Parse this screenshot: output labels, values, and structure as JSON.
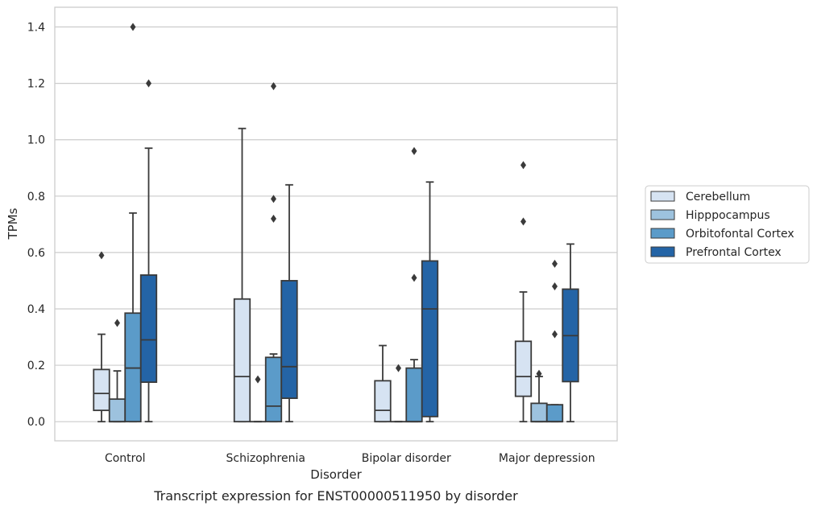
{
  "caption": "Transcript expression for ENST00000511950 by disorder",
  "chart_data": {
    "type": "box",
    "title": "",
    "xlabel": "Disorder",
    "ylabel": "TPMs",
    "ylim": [
      -0.068,
      1.47
    ],
    "yticks": [
      "0.0",
      "0.2",
      "0.4",
      "0.6",
      "0.8",
      "1.0",
      "1.2",
      "1.4"
    ],
    "grid": "horizontal",
    "legend_position": "right",
    "categories": [
      "Control",
      "Schizophrenia",
      "Bipolar disorder",
      "Major depression"
    ],
    "series": [
      {
        "name": "Cerebellum",
        "color": "#d6e3f2",
        "boxes": [
          {
            "whisker_low": 0.0,
            "q1": 0.04,
            "median": 0.1,
            "q3": 0.185,
            "whisker_high": 0.31,
            "outliers": [
              0.59
            ]
          },
          {
            "whisker_low": 0.0,
            "q1": 0.0,
            "median": 0.16,
            "q3": 0.435,
            "whisker_high": 1.04,
            "outliers": []
          },
          {
            "whisker_low": 0.0,
            "q1": 0.0,
            "median": 0.04,
            "q3": 0.145,
            "whisker_high": 0.27,
            "outliers": []
          },
          {
            "whisker_low": 0.0,
            "q1": 0.09,
            "median": 0.16,
            "q3": 0.285,
            "whisker_high": 0.46,
            "outliers": [
              0.71,
              0.91
            ]
          }
        ]
      },
      {
        "name": "Hipppocampus",
        "color": "#9dc2de",
        "boxes": [
          {
            "whisker_low": 0.0,
            "q1": 0.0,
            "median": 0.0,
            "q3": 0.08,
            "whisker_high": 0.18,
            "outliers": [
              0.35
            ]
          },
          {
            "whisker_low": 0.0,
            "q1": 0.0,
            "median": 0.0,
            "q3": 0.0,
            "whisker_high": 0.0,
            "outliers": [
              0.15
            ]
          },
          {
            "whisker_low": 0.0,
            "q1": 0.0,
            "median": 0.0,
            "q3": 0.0,
            "whisker_high": 0.0,
            "outliers": [
              0.19
            ]
          },
          {
            "whisker_low": 0.0,
            "q1": 0.0,
            "median": 0.0,
            "q3": 0.065,
            "whisker_high": 0.16,
            "outliers": [
              0.17
            ]
          }
        ]
      },
      {
        "name": "Orbitofontal Cortex",
        "color": "#5b9bc9",
        "boxes": [
          {
            "whisker_low": 0.0,
            "q1": 0.0,
            "median": 0.19,
            "q3": 0.385,
            "whisker_high": 0.74,
            "outliers": [
              1.4
            ]
          },
          {
            "whisker_low": 0.0,
            "q1": 0.0,
            "median": 0.055,
            "q3": 0.228,
            "whisker_high": 0.24,
            "outliers": [
              0.72,
              0.79,
              1.19
            ]
          },
          {
            "whisker_low": 0.0,
            "q1": 0.0,
            "median": 0.0,
            "q3": 0.19,
            "whisker_high": 0.22,
            "outliers": [
              0.51,
              0.96
            ]
          },
          {
            "whisker_low": 0.0,
            "q1": 0.0,
            "median": 0.0,
            "q3": 0.06,
            "whisker_high": 0.06,
            "outliers": [
              0.31,
              0.48,
              0.56
            ]
          }
        ]
      },
      {
        "name": "Prefrontal Cortex",
        "color": "#2464a6",
        "boxes": [
          {
            "whisker_low": 0.0,
            "q1": 0.14,
            "median": 0.29,
            "q3": 0.52,
            "whisker_high": 0.97,
            "outliers": [
              1.2
            ]
          },
          {
            "whisker_low": 0.0,
            "q1": 0.083,
            "median": 0.195,
            "q3": 0.5,
            "whisker_high": 0.84,
            "outliers": []
          },
          {
            "whisker_low": 0.0,
            "q1": 0.018,
            "median": 0.4,
            "q3": 0.57,
            "whisker_high": 0.85,
            "outliers": []
          },
          {
            "whisker_low": 0.0,
            "q1": 0.142,
            "median": 0.305,
            "q3": 0.47,
            "whisker_high": 0.63,
            "outliers": []
          }
        ]
      }
    ]
  }
}
